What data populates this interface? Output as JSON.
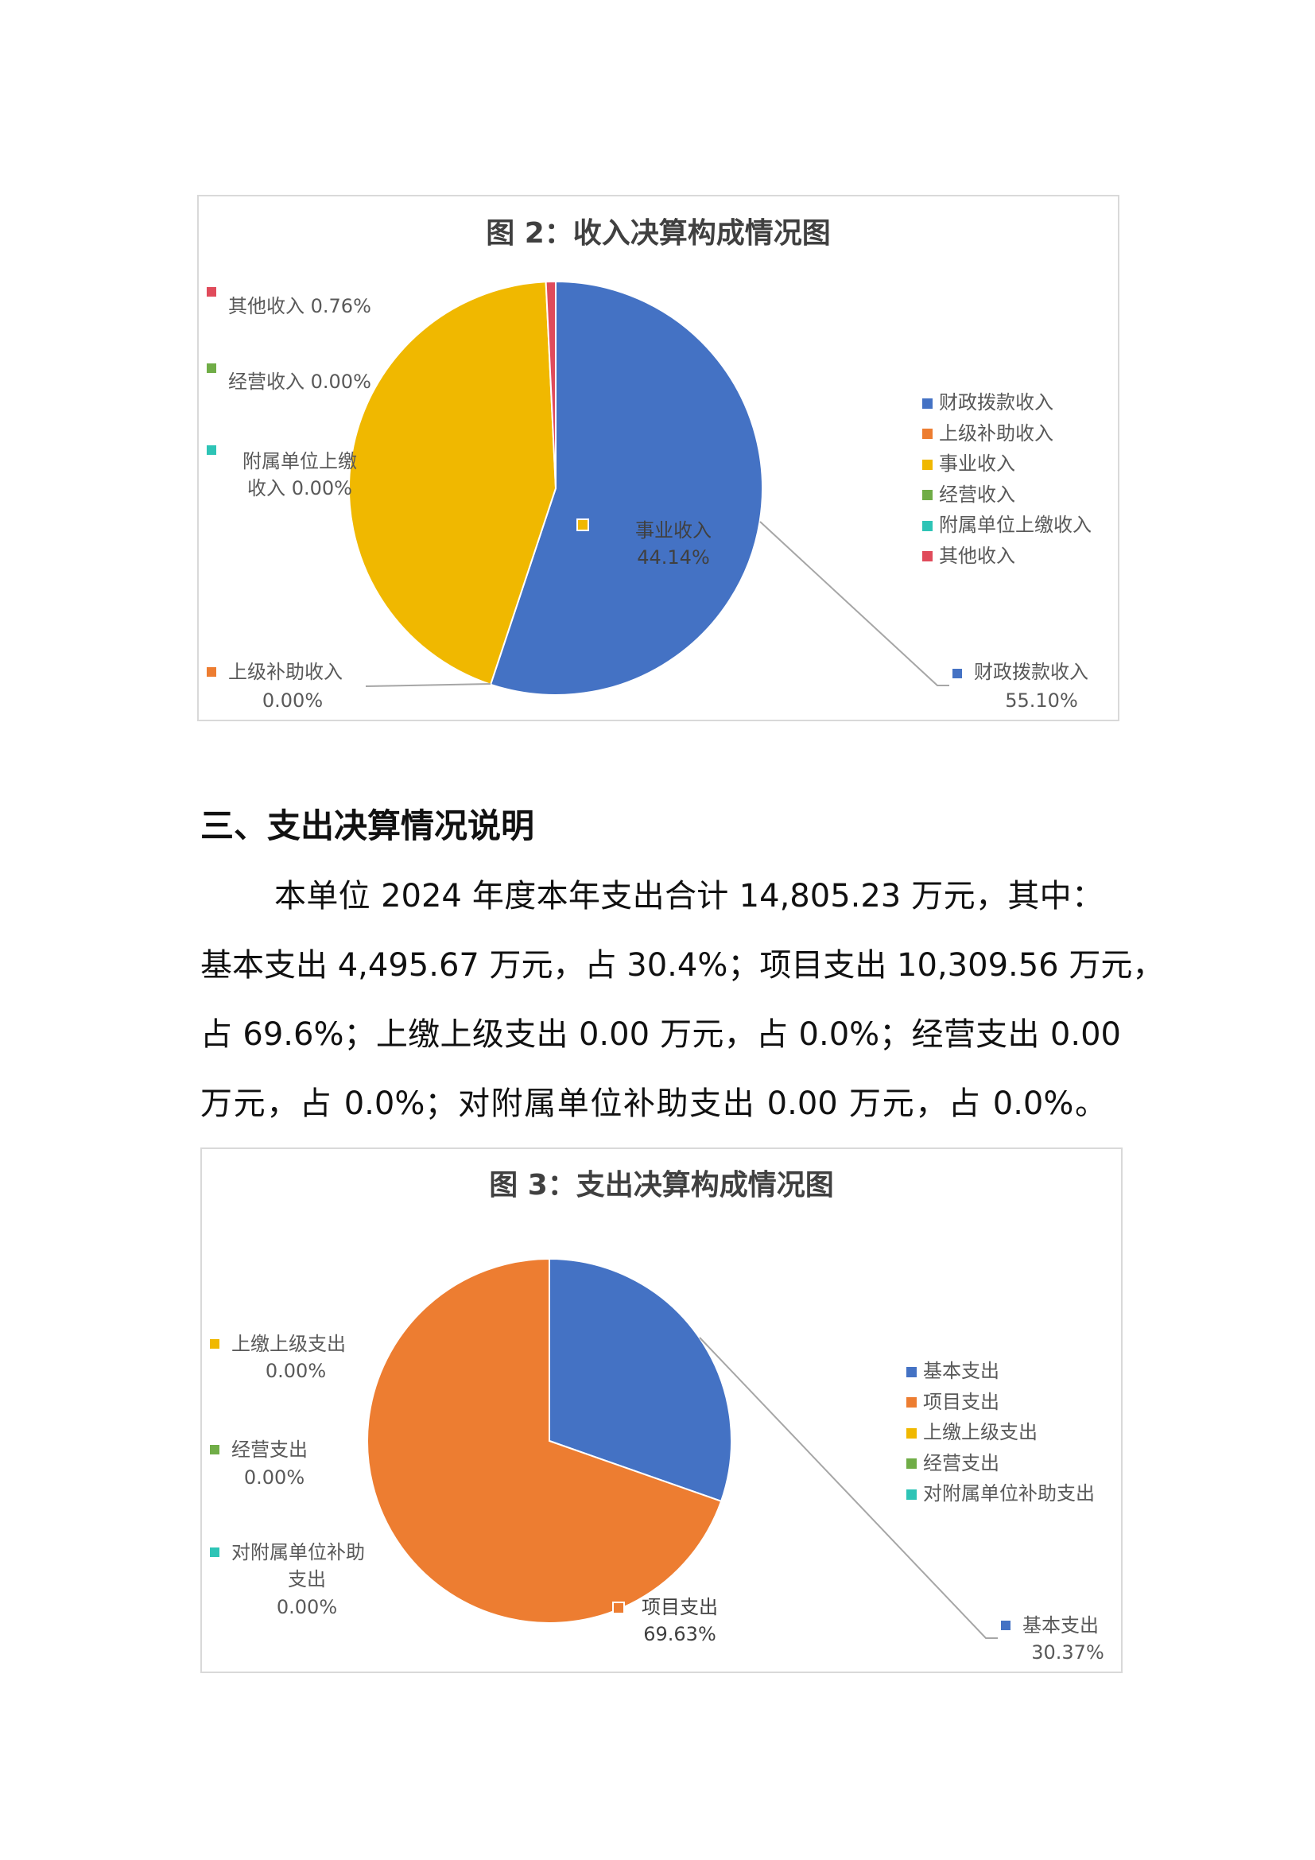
{
  "section": {
    "heading": "三、支出决算情况说明",
    "paragraph_lines": [
      "本单位 2024 年度本年支出合计 14,805.23 万元，其中：",
      "基本支出 4,495.67 万元，占 30.4%；项目支出 10,309.56 万元，",
      "占 69.6%；上缴上级支出 0.00 万元，占 0.0%；经营支出 0.00",
      "万元，占 0.0%；对附属单位补助支出 0.00 万元，占 0.0%。"
    ]
  },
  "chart_data": [
    {
      "type": "pie",
      "title": "图 2：收入决算构成情况图",
      "categories": [
        "财政拨款收入",
        "上级补助收入",
        "事业收入",
        "经营收入",
        "附属单位上缴收入",
        "其他收入"
      ],
      "values": [
        55.1,
        0.0,
        44.14,
        0.0,
        0.0,
        0.76
      ],
      "colors": [
        "#4472C4",
        "#ED7D31",
        "#F0B800",
        "#70AD47",
        "#2EC4B6",
        "#E04B5B"
      ],
      "legend": "right",
      "data_labels": {
        "other": {
          "name": "其他收入",
          "value": "0.76%"
        },
        "operating": {
          "name": "经营收入",
          "value": "0.00%"
        },
        "affiliate": {
          "name1": "附属单位上缴",
          "name2": "收入",
          "value": "0.00%"
        },
        "superior": {
          "name": "上级补助收入",
          "value": "0.00%"
        },
        "business": {
          "name": "事业收入",
          "value": "44.14%"
        },
        "fiscal": {
          "name": "财政拨款收入",
          "value": "55.10%"
        }
      }
    },
    {
      "type": "pie",
      "title": "图 3：支出决算构成情况图",
      "categories": [
        "基本支出",
        "项目支出",
        "上缴上级支出",
        "经营支出",
        "对附属单位补助支出"
      ],
      "values": [
        30.37,
        69.63,
        0.0,
        0.0,
        0.0
      ],
      "colors": [
        "#4472C4",
        "#ED7D31",
        "#F0B800",
        "#70AD47",
        "#2EC4B6"
      ],
      "legend": "right",
      "data_labels": {
        "remit": {
          "name": "上缴上级支出",
          "value": "0.00%"
        },
        "operating": {
          "name": "经营支出",
          "value": "0.00%"
        },
        "subsidy": {
          "name1": "对附属单位补助",
          "name2": "支出",
          "value": "0.00%"
        },
        "project": {
          "name": "项目支出",
          "value": "69.63%"
        },
        "basic": {
          "name": "基本支出",
          "value": "30.37%"
        }
      }
    }
  ]
}
